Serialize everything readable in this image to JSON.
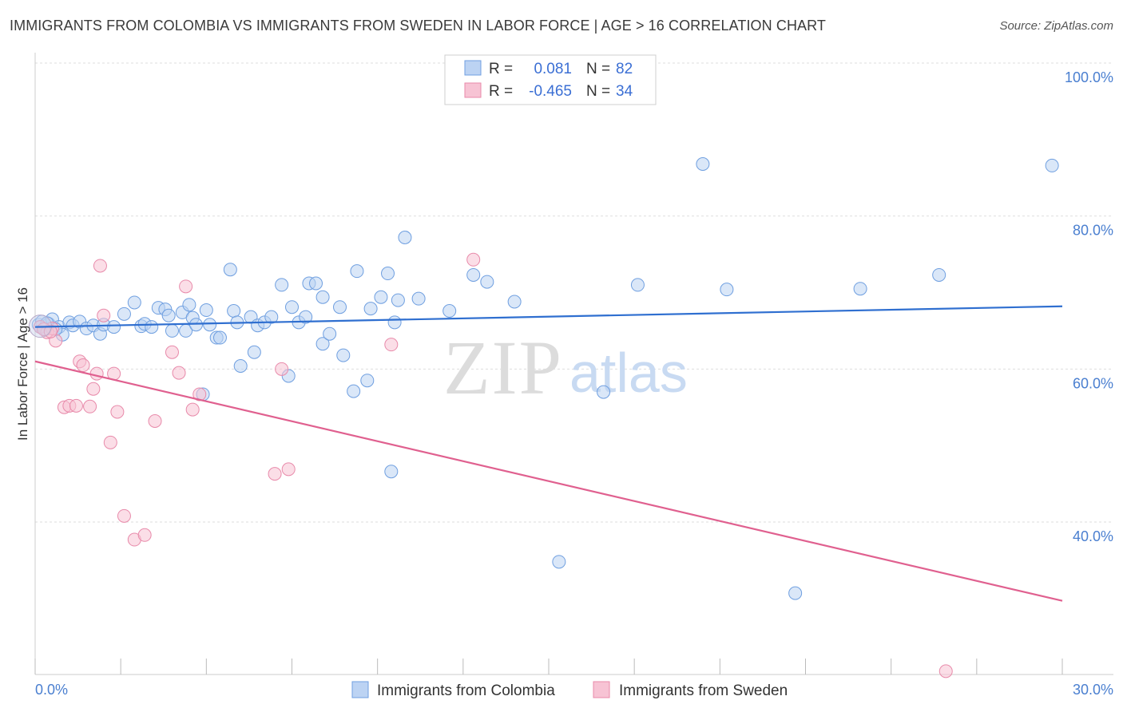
{
  "title": "IMMIGRANTS FROM COLOMBIA VS IMMIGRANTS FROM SWEDEN IN LABOR FORCE | AGE > 16 CORRELATION CHART",
  "source": "Source: ZipAtlas.com",
  "watermark": {
    "zip": "ZIP",
    "atlas": "atlas"
  },
  "chart_data": {
    "type": "scatter",
    "title": "IMMIGRANTS FROM COLOMBIA VS IMMIGRANTS FROM SWEDEN IN LABOR FORCE | AGE > 16 CORRELATION CHART",
    "xlabel": "",
    "ylabel": "In Labor Force | Age > 16",
    "xlim": [
      0,
      30
    ],
    "ylim": [
      20,
      102
    ],
    "x_tick_labels": {
      "left": "0.0%",
      "right": "30.0%"
    },
    "y_ticks": [
      {
        "value": 100,
        "label": "100.0%"
      },
      {
        "value": 80,
        "label": "80.0%"
      },
      {
        "value": 60,
        "label": "60.0%"
      },
      {
        "value": 40,
        "label": "40.0%"
      }
    ],
    "legend": [
      {
        "r_label": "R =",
        "r_value": "0.081",
        "n_label": "N =",
        "n_value": "82"
      },
      {
        "r_label": "R =",
        "r_value": "-0.465",
        "n_label": "N =",
        "n_value": "34"
      }
    ],
    "series": [
      {
        "name": "Immigrants from Colombia",
        "color": "#6f9fe0",
        "fill": "#bcd3f3",
        "trend": {
          "x": [
            0,
            30
          ],
          "y": [
            65.5,
            68.2
          ],
          "color": "#2f6fd0"
        },
        "points": [
          [
            0.1,
            65.8
          ],
          [
            0.2,
            66.2
          ],
          [
            0.3,
            65.2
          ],
          [
            0.4,
            65.9
          ],
          [
            0.5,
            66.5
          ],
          [
            0.7,
            65.5
          ],
          [
            0.8,
            64.5
          ],
          [
            1.0,
            66.1
          ],
          [
            1.1,
            65.7
          ],
          [
            1.3,
            66.2
          ],
          [
            1.5,
            65.3
          ],
          [
            1.7,
            65.7
          ],
          [
            1.9,
            64.6
          ],
          [
            2.0,
            65.8
          ],
          [
            2.3,
            65.5
          ],
          [
            2.6,
            67.2
          ],
          [
            2.9,
            68.7
          ],
          [
            3.1,
            65.6
          ],
          [
            3.2,
            65.9
          ],
          [
            3.4,
            65.5
          ],
          [
            3.6,
            68.0
          ],
          [
            3.8,
            67.8
          ],
          [
            3.9,
            67.0
          ],
          [
            4.0,
            65.0
          ],
          [
            4.3,
            67.4
          ],
          [
            4.4,
            65.0
          ],
          [
            4.5,
            68.4
          ],
          [
            4.6,
            66.7
          ],
          [
            4.7,
            65.8
          ],
          [
            4.9,
            56.7
          ],
          [
            5.0,
            67.7
          ],
          [
            5.1,
            65.8
          ],
          [
            5.3,
            64.1
          ],
          [
            5.4,
            64.1
          ],
          [
            5.7,
            73.0
          ],
          [
            5.8,
            67.6
          ],
          [
            5.9,
            66.1
          ],
          [
            6.0,
            60.4
          ],
          [
            6.3,
            66.8
          ],
          [
            6.4,
            62.2
          ],
          [
            6.5,
            65.7
          ],
          [
            6.7,
            66.1
          ],
          [
            6.9,
            66.8
          ],
          [
            7.2,
            71.0
          ],
          [
            7.4,
            59.1
          ],
          [
            7.5,
            68.1
          ],
          [
            7.7,
            66.1
          ],
          [
            7.9,
            66.8
          ],
          [
            8.0,
            71.2
          ],
          [
            8.2,
            71.2
          ],
          [
            8.4,
            63.3
          ],
          [
            8.4,
            69.4
          ],
          [
            8.6,
            64.6
          ],
          [
            8.9,
            68.1
          ],
          [
            9.0,
            61.8
          ],
          [
            9.3,
            57.1
          ],
          [
            9.4,
            72.8
          ],
          [
            9.7,
            58.5
          ],
          [
            9.8,
            67.9
          ],
          [
            10.1,
            69.4
          ],
          [
            10.3,
            72.5
          ],
          [
            10.4,
            46.6
          ],
          [
            10.5,
            66.1
          ],
          [
            10.6,
            69.0
          ],
          [
            10.8,
            77.2
          ],
          [
            11.2,
            69.2
          ],
          [
            12.1,
            67.6
          ],
          [
            12.8,
            72.3
          ],
          [
            13.2,
            71.4
          ],
          [
            14.0,
            68.8
          ],
          [
            15.3,
            34.8
          ],
          [
            16.6,
            57.0
          ],
          [
            17.6,
            71.0
          ],
          [
            19.5,
            86.8
          ],
          [
            20.2,
            70.4
          ],
          [
            22.2,
            30.7
          ],
          [
            24.1,
            70.5
          ],
          [
            26.4,
            72.3
          ],
          [
            29.7,
            86.6
          ],
          [
            0.15,
            65.5
          ],
          [
            0.35,
            66.0
          ],
          [
            0.6,
            65.2
          ]
        ]
      },
      {
        "name": "Immigrants from Sweden",
        "color": "#e88aaa",
        "fill": "#f7c3d4",
        "trend": {
          "x": [
            0,
            30
          ],
          "y": [
            61.0,
            29.7
          ],
          "color": "#e0608f"
        },
        "points": [
          [
            0.15,
            65.5
          ],
          [
            0.35,
            64.8
          ],
          [
            0.5,
            65.3
          ],
          [
            0.6,
            63.7
          ],
          [
            0.85,
            55.0
          ],
          [
            1.0,
            55.2
          ],
          [
            1.2,
            55.2
          ],
          [
            1.3,
            61.0
          ],
          [
            1.4,
            60.5
          ],
          [
            1.6,
            55.1
          ],
          [
            1.7,
            57.4
          ],
          [
            1.8,
            59.4
          ],
          [
            1.9,
            73.5
          ],
          [
            2.0,
            67.0
          ],
          [
            2.2,
            50.4
          ],
          [
            2.3,
            59.4
          ],
          [
            2.4,
            54.4
          ],
          [
            2.6,
            40.8
          ],
          [
            2.9,
            37.7
          ],
          [
            3.2,
            38.3
          ],
          [
            3.5,
            53.2
          ],
          [
            4.0,
            62.2
          ],
          [
            4.2,
            59.5
          ],
          [
            4.4,
            70.8
          ],
          [
            4.6,
            54.7
          ],
          [
            4.8,
            56.7
          ],
          [
            7.0,
            46.3
          ],
          [
            7.2,
            60.0
          ],
          [
            7.4,
            46.9
          ],
          [
            10.4,
            63.2
          ],
          [
            12.8,
            74.3
          ],
          [
            26.6,
            20.5
          ],
          [
            0.25,
            65.2
          ],
          [
            0.45,
            64.9
          ]
        ]
      }
    ]
  }
}
